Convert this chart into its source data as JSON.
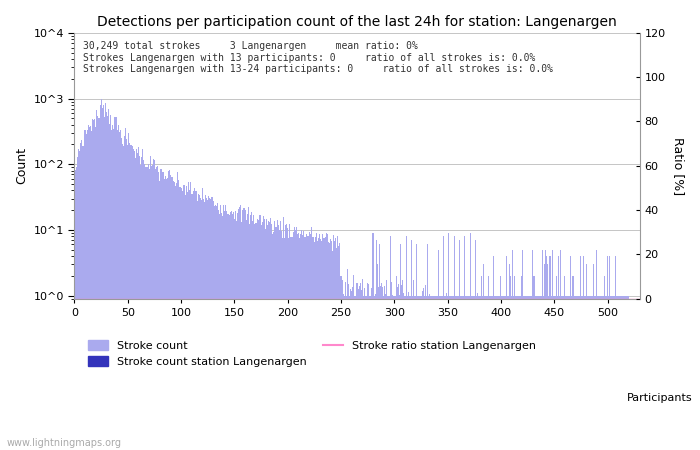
{
  "title": "Detections per participation count of the last 24h for station: Langenargen",
  "xlabel": "Participants",
  "ylabel_left": "Count",
  "ylabel_right": "Ratio [%]",
  "annotation_lines": [
    "30,249 total strokes     3 Langenargen     mean ratio: 0%",
    "Strokes Langenargen with 13 participants: 0     ratio of all strokes is: 0.0%",
    "Strokes Langenargen with 13-24 participants: 0     ratio of all strokes is: 0.0%"
  ],
  "watermark": "www.lightningmaps.org",
  "bar_color_light": "#aaaaee",
  "bar_color_dark": "#3333bb",
  "line_color": "#ff88cc",
  "background_color": "#ffffff",
  "grid_color": "#bbbbbb",
  "xlim": [
    0,
    530
  ],
  "ylim_right": [
    0,
    120
  ],
  "yticks_right": [
    0,
    20,
    40,
    60,
    80,
    100,
    120
  ],
  "xticks": [
    0,
    50,
    100,
    150,
    200,
    250,
    300,
    350,
    400,
    450,
    500
  ],
  "legend_labels": [
    "Stroke count",
    "Stroke count station Langenargen",
    "Stroke ratio station Langenargen"
  ]
}
